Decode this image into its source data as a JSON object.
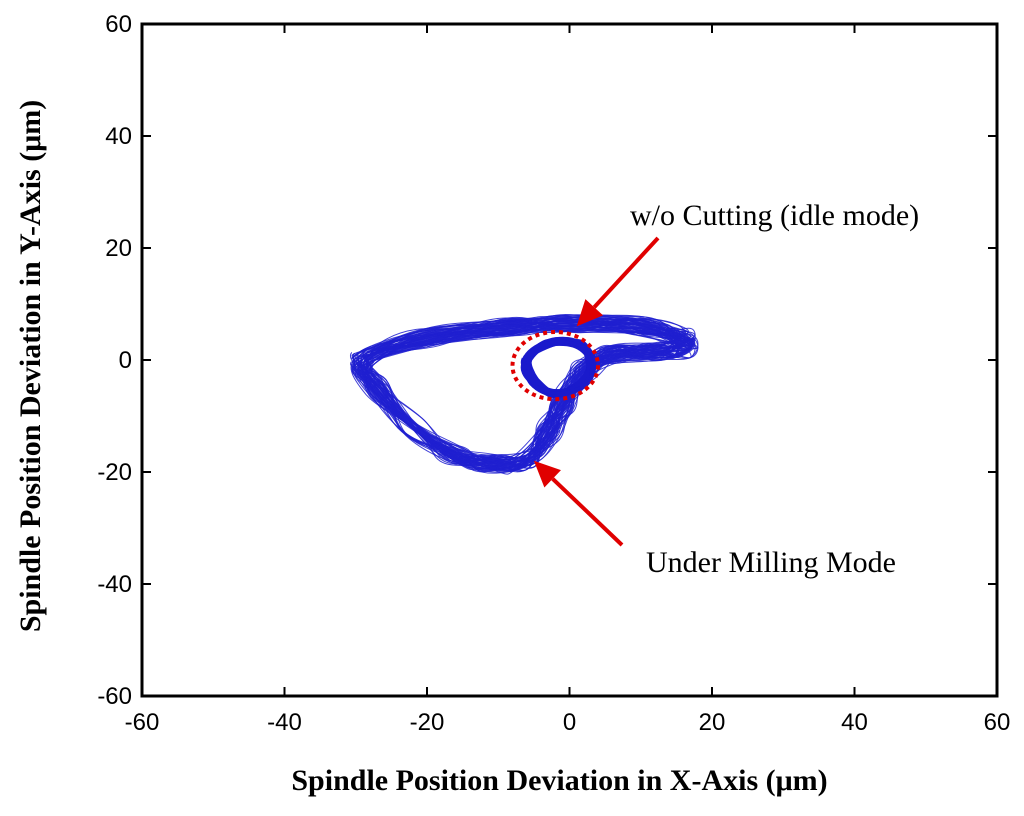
{
  "chart_data": {
    "type": "line",
    "title": "",
    "xlabel": "Spindle Position Deviation in X-Axis (μm)",
    "ylabel": "Spindle Position Deviation in Y-Axis (μm)",
    "xlim": [
      -60,
      60
    ],
    "ylim": [
      -60,
      60
    ],
    "xticks": [
      -60,
      -40,
      -20,
      0,
      20,
      40,
      60
    ],
    "yticks": [
      -60,
      -40,
      -20,
      0,
      20,
      40,
      60
    ],
    "grid": false,
    "series": [
      {
        "color": "#2020d0",
        "description_points": {
          "x": [
            -29,
            -20,
            -8,
            0,
            10,
            16,
            16,
            12,
            6,
            2,
            -1,
            -3,
            -6,
            -11,
            -16,
            -22,
            -27,
            -29
          ],
          "y": [
            0,
            4,
            6,
            6.5,
            6,
            4,
            2,
            1.5,
            1,
            -2,
            -8,
            -13,
            -18,
            -18.5,
            -17,
            -12,
            -5,
            0
          ]
        }
      },
      {
        "color": "#1a1acc",
        "description_points": {
          "x": [
            -6,
            -3,
            1,
            3,
            2,
            -2,
            -5,
            -6
          ],
          "y": [
            0,
            3,
            3,
            0,
            -4,
            -6,
            -4,
            0
          ]
        }
      }
    ],
    "highlight_circle": {
      "center": [
        -2,
        -1
      ],
      "radius": 6,
      "color": "#e00000"
    },
    "annotations": [
      {
        "text": "w/o Cutting (idle mode)",
        "points_to": [
          1,
          6
        ],
        "color": "#e00000"
      },
      {
        "text": "Under Milling Mode",
        "points_to": [
          -5,
          -18
        ],
        "color": "#e00000"
      }
    ]
  }
}
